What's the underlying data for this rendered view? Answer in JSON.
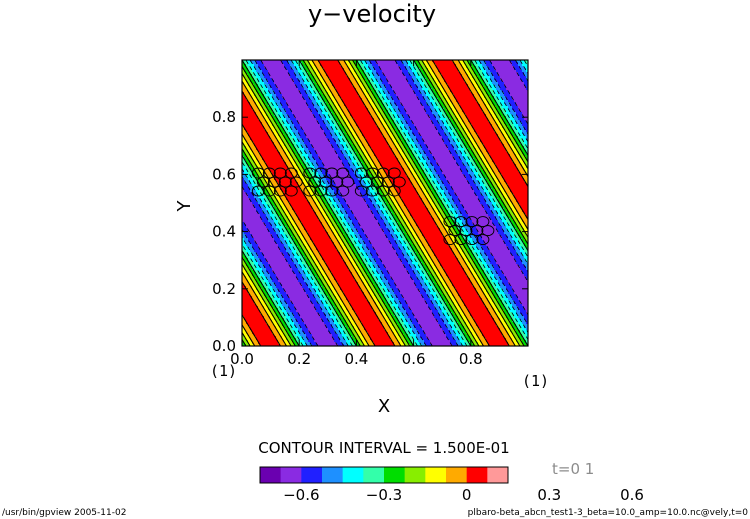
{
  "chart_data": {
    "type": "contour",
    "title": "y−velocity",
    "xlabel": "X",
    "ylabel": "Y",
    "xlim": [
      0,
      1
    ],
    "ylim": [
      0,
      1
    ],
    "x_ticks": [
      "0.0",
      "0.2",
      "0.4",
      "0.6",
      "0.8"
    ],
    "y_ticks": [
      "0.0",
      "0.2",
      "0.4",
      "0.6",
      "0.8"
    ],
    "x_tick_values": [
      0,
      0.2,
      0.4,
      0.6,
      0.8
    ],
    "y_tick_values": [
      0,
      0.2,
      0.4,
      0.6,
      0.8
    ],
    "axis_index_left": "(1)",
    "axis_index_right": "(1)",
    "contour_interval_text": "CONTOUR INTERVAL = 1.500E-01",
    "contour_interval": 0.15,
    "colorbar": {
      "colors": [
        "#6a00b0",
        "#8a2be2",
        "#2020ff",
        "#1e90ff",
        "#00ffff",
        "#33ffaa",
        "#00dd00",
        "#88ee00",
        "#ffff00",
        "#ffaa00",
        "#ff0000",
        "#ff9999"
      ],
      "tick_labels": [
        "−0.6",
        "−0.3",
        "0",
        "0.3",
        "0.6"
      ]
    },
    "wave": {
      "amplitude": 0.7,
      "x_wavenumber": 2.5,
      "y_wavenumber": 1.5
    },
    "particle_clusters": [
      {
        "x": 0.12,
        "y": 0.57
      },
      {
        "x": 0.3,
        "y": 0.57
      },
      {
        "x": 0.48,
        "y": 0.57
      },
      {
        "x": 0.79,
        "y": 0.4
      }
    ]
  },
  "time_label": "t=0 1",
  "footer": {
    "left": "/usr/bin/gpview   2005-11-02",
    "right": "plbaro-beta_abcn_test1-3_beta=10.0_amp=10.0.nc@vely,t=0"
  }
}
